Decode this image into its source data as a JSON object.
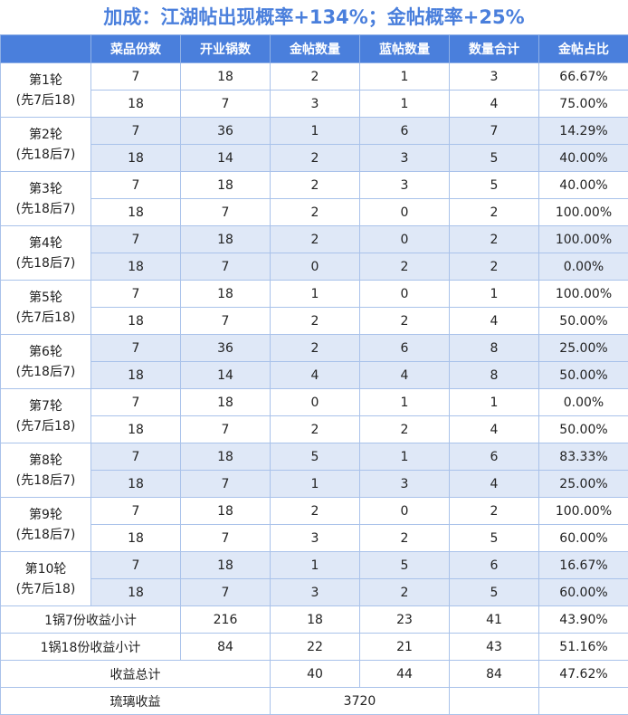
{
  "title": "加成：江湖帖出现概率+134%；金帖概率+25%",
  "headers": [
    "",
    "菜品份数",
    "开业锅数",
    "金帖数量",
    "蓝帖数量",
    "数量合计",
    "金帖占比"
  ],
  "rounds": [
    {
      "label": "第1轮",
      "order": "(先7后18)",
      "rows": [
        [
          "7",
          "18",
          "2",
          "1",
          "3",
          "66.67%"
        ],
        [
          "18",
          "7",
          "3",
          "1",
          "4",
          "75.00%"
        ]
      ]
    },
    {
      "label": "第2轮",
      "order": "(先18后7)",
      "rows": [
        [
          "7",
          "36",
          "1",
          "6",
          "7",
          "14.29%"
        ],
        [
          "18",
          "14",
          "2",
          "3",
          "5",
          "40.00%"
        ]
      ]
    },
    {
      "label": "第3轮",
      "order": "(先18后7)",
      "rows": [
        [
          "7",
          "18",
          "2",
          "3",
          "5",
          "40.00%"
        ],
        [
          "18",
          "7",
          "2",
          "0",
          "2",
          "100.00%"
        ]
      ]
    },
    {
      "label": "第4轮",
      "order": "(先18后7)",
      "rows": [
        [
          "7",
          "18",
          "2",
          "0",
          "2",
          "100.00%"
        ],
        [
          "18",
          "7",
          "0",
          "2",
          "2",
          "0.00%"
        ]
      ]
    },
    {
      "label": "第5轮",
      "order": "(先7后18)",
      "rows": [
        [
          "7",
          "18",
          "1",
          "0",
          "1",
          "100.00%"
        ],
        [
          "18",
          "7",
          "2",
          "2",
          "4",
          "50.00%"
        ]
      ]
    },
    {
      "label": "第6轮",
      "order": "(先18后7)",
      "rows": [
        [
          "7",
          "36",
          "2",
          "6",
          "8",
          "25.00%"
        ],
        [
          "18",
          "14",
          "4",
          "4",
          "8",
          "50.00%"
        ]
      ]
    },
    {
      "label": "第7轮",
      "order": "(先7后18)",
      "rows": [
        [
          "7",
          "18",
          "0",
          "1",
          "1",
          "0.00%"
        ],
        [
          "18",
          "7",
          "2",
          "2",
          "4",
          "50.00%"
        ]
      ]
    },
    {
      "label": "第8轮",
      "order": "(先18后7)",
      "rows": [
        [
          "7",
          "18",
          "5",
          "1",
          "6",
          "83.33%"
        ],
        [
          "18",
          "7",
          "1",
          "3",
          "4",
          "25.00%"
        ]
      ]
    },
    {
      "label": "第9轮",
      "order": "(先18后7)",
      "rows": [
        [
          "7",
          "18",
          "2",
          "0",
          "2",
          "100.00%"
        ],
        [
          "18",
          "7",
          "3",
          "2",
          "5",
          "60.00%"
        ]
      ]
    },
    {
      "label": "第10轮",
      "order": "(先7后18)",
      "rows": [
        [
          "7",
          "18",
          "1",
          "5",
          "6",
          "16.67%"
        ],
        [
          "18",
          "7",
          "3",
          "2",
          "5",
          "60.00%"
        ]
      ]
    }
  ],
  "subtotals": [
    {
      "label": "1锅7份收益小计",
      "values": [
        "216",
        "18",
        "23",
        "41",
        "43.90%"
      ]
    },
    {
      "label": "1锅18份收益小计",
      "values": [
        "84",
        "22",
        "21",
        "43",
        "51.16%"
      ]
    }
  ],
  "total": {
    "label": "收益总计",
    "values": [
      "40",
      "44",
      "84",
      "47.62%"
    ]
  },
  "glaze": {
    "label": "琉璃收益",
    "value": "3720"
  }
}
